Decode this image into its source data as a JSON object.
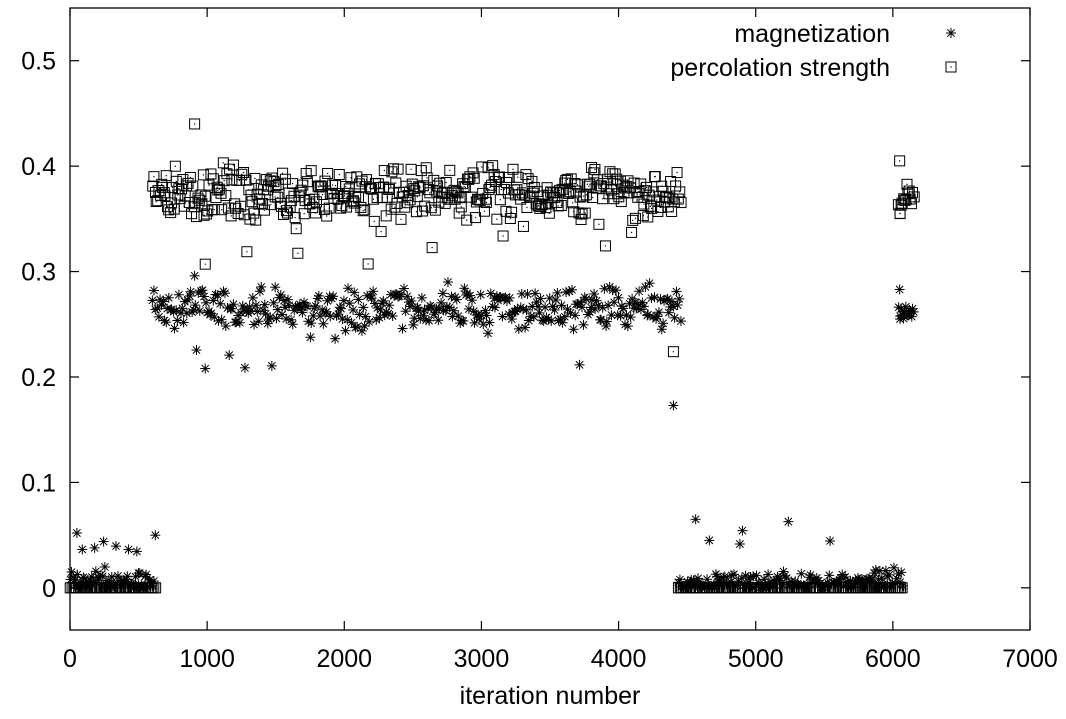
{
  "chart_data": {
    "type": "scatter",
    "xlabel": "iteration number",
    "ylabel": "",
    "xlim": [
      0,
      7000
    ],
    "ylim": [
      -0.04,
      0.55
    ],
    "xticks": [
      0,
      1000,
      2000,
      3000,
      4000,
      5000,
      6000,
      7000
    ],
    "yticks": [
      0,
      0.1,
      0.2,
      0.3,
      0.4,
      0.5
    ],
    "xtick_labels": [
      "0",
      "1000",
      "2000",
      "3000",
      "4000",
      "5000",
      "6000",
      "7000"
    ],
    "ytick_labels": [
      "0",
      "0.1",
      "0.2",
      "0.3",
      "0.4",
      "0.5"
    ],
    "legend_position": "top-right",
    "grid": false,
    "series": [
      {
        "name": "magnetization",
        "marker": "asterisk",
        "segments": [
          {
            "x_range": [
              0,
              630
            ],
            "mean": 0.012,
            "spread": 0.012,
            "max": 0.052,
            "count": 65
          },
          {
            "x_range": [
              600,
              4460
            ],
            "mean": 0.265,
            "spread": 0.014,
            "min": 0.208,
            "max": 0.296,
            "count": 360
          },
          {
            "x": 4400,
            "y": 0.173
          },
          {
            "x_range": [
              4430,
              6080
            ],
            "mean": 0.012,
            "spread": 0.013,
            "max": 0.065,
            "count": 150
          },
          {
            "x_range": [
              6040,
              6160
            ],
            "mean": 0.262,
            "spread": 0.006,
            "min": 0.255,
            "max": 0.283,
            "count": 14
          }
        ]
      },
      {
        "name": "percolation strength",
        "marker": "square",
        "segments": [
          {
            "x_range": [
              0,
              630
            ],
            "constant": 0.0,
            "count": 55
          },
          {
            "x_range": [
              600,
              4460
            ],
            "mean": 0.375,
            "spread": 0.018,
            "min": 0.307,
            "max": 0.44,
            "count": 420
          },
          {
            "x": 4400,
            "y": 0.224
          },
          {
            "x_range": [
              4430,
              6080
            ],
            "constant": 0.0,
            "count": 130
          },
          {
            "x_range": [
              6040,
              6160
            ],
            "mean": 0.368,
            "spread": 0.012,
            "min": 0.355,
            "max": 0.405,
            "count": 14
          }
        ]
      }
    ]
  }
}
